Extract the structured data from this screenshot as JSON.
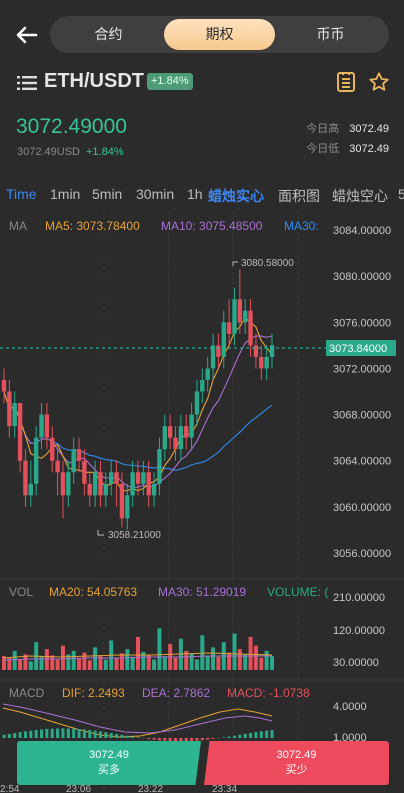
{
  "nav": {
    "tabs": [
      {
        "label": "合约"
      },
      {
        "label": "期权"
      },
      {
        "label": "币币"
      }
    ],
    "active_tab": "期权"
  },
  "pair": {
    "name": "ETH/USDT",
    "change_badge": "+1.84%"
  },
  "ticker": {
    "last_price": "3072.49000",
    "usd_price": "3072.49USD",
    "change": "+1.84%",
    "high_label": "今日高",
    "high_value": "3072.49",
    "low_label": "今日低",
    "low_value": "3072.49"
  },
  "intervals": [
    {
      "label": "Time",
      "active": true
    },
    {
      "label": "1min"
    },
    {
      "label": "5min"
    },
    {
      "label": "30min"
    },
    {
      "label": "1h"
    },
    {
      "label": "蜡烛实心",
      "active": true
    },
    {
      "label": "面积图"
    },
    {
      "label": "蜡烛空心"
    },
    {
      "label": "5"
    }
  ],
  "main_chart": {
    "ma_label": "MA",
    "ma5_label": "MA5: 3073.78400",
    "ma10_label": "MA10: 3075.48500",
    "ma30_label": "MA30:",
    "y_ticks": [
      "3084.00000",
      "3080.00000",
      "3076.00000",
      "3072.00000",
      "3068.00000",
      "3064.00000",
      "3060.00000",
      "3056.00000"
    ],
    "max_label": "3080.58000",
    "min_label": "3058.21000",
    "current_price_tag": "3073.84000",
    "colors": {
      "ma5": "#e8a232",
      "ma10": "#a970d6",
      "ma30": "#2f8cf0",
      "up": "#2aa98a",
      "down": "#e2515c"
    }
  },
  "volume": {
    "label": "VOL",
    "ma20_label": "MA20: 54.05763",
    "ma30_label": "MA30: 51.29019",
    "volume_label": "VOLUME: (",
    "y_ticks": [
      "210.00000",
      "120.00000",
      "30.00000"
    ]
  },
  "macd": {
    "label": "MACD",
    "dif_label": "DIF: 2.2493",
    "dea_label": "DEA: 2.7862",
    "macd_label": "MACD: -1.0738",
    "y_ticks": [
      "4.0000",
      "1.0000"
    ]
  },
  "x_ticks": [
    "2:54",
    "23:06",
    "23:22",
    "23:34"
  ],
  "buy": {
    "price": "3072.49",
    "label": "买多"
  },
  "sell": {
    "price": "3072.49",
    "label": "买少"
  },
  "chart_data": {
    "type": "candlestick",
    "y_range": [
      3054,
      3086
    ],
    "candles": [
      [
        3071,
        3070,
        3072,
        3069
      ],
      [
        3070,
        3067,
        3071,
        3066
      ],
      [
        3067,
        3069,
        3070,
        3066
      ],
      [
        3069,
        3064,
        3069,
        3063
      ],
      [
        3064,
        3061,
        3065,
        3060
      ],
      [
        3061,
        3062,
        3064,
        3060
      ],
      [
        3062,
        3066,
        3067,
        3061
      ],
      [
        3066,
        3068,
        3069,
        3065
      ],
      [
        3068,
        3066,
        3069,
        3065
      ],
      [
        3066,
        3064,
        3067,
        3063
      ],
      [
        3064,
        3063,
        3065,
        3061
      ],
      [
        3063,
        3061,
        3064,
        3059
      ],
      [
        3061,
        3063,
        3064,
        3060
      ],
      [
        3063,
        3065,
        3066,
        3062
      ],
      [
        3065,
        3064,
        3066,
        3063
      ],
      [
        3064,
        3062,
        3065,
        3061
      ],
      [
        3062,
        3061,
        3063,
        3060
      ],
      [
        3061,
        3063,
        3064,
        3060
      ],
      [
        3063,
        3061,
        3064,
        3060
      ],
      [
        3061,
        3062,
        3063,
        3060
      ],
      [
        3062,
        3063,
        3064,
        3061
      ],
      [
        3063,
        3062,
        3064,
        3060
      ],
      [
        3062,
        3059,
        3063,
        3058.2
      ],
      [
        3059,
        3061,
        3062,
        3058
      ],
      [
        3061,
        3063,
        3064,
        3060
      ],
      [
        3063,
        3062,
        3064,
        3061
      ],
      [
        3062,
        3063,
        3064,
        3061
      ],
      [
        3063,
        3061,
        3064,
        3060
      ],
      [
        3061,
        3062,
        3063,
        3060
      ],
      [
        3062,
        3065,
        3066,
        3061
      ],
      [
        3065,
        3067,
        3068,
        3064
      ],
      [
        3067,
        3066,
        3068,
        3065
      ],
      [
        3066,
        3065,
        3067,
        3064
      ],
      [
        3065,
        3067,
        3068,
        3064
      ],
      [
        3067,
        3066,
        3068,
        3065
      ],
      [
        3066,
        3068,
        3069,
        3065
      ],
      [
        3068,
        3070,
        3071,
        3067
      ],
      [
        3070,
        3071,
        3072,
        3069
      ],
      [
        3071,
        3072,
        3073,
        3070
      ],
      [
        3072,
        3074,
        3075,
        3071
      ],
      [
        3074,
        3073,
        3075,
        3072
      ],
      [
        3073,
        3076,
        3077,
        3072
      ],
      [
        3076,
        3075,
        3078,
        3074
      ],
      [
        3075,
        3078,
        3079,
        3074
      ],
      [
        3078,
        3076,
        3080.58,
        3075
      ],
      [
        3076,
        3077,
        3078,
        3075
      ],
      [
        3077,
        3074,
        3078,
        3073
      ],
      [
        3074,
        3073,
        3075,
        3072
      ],
      [
        3073,
        3072,
        3074,
        3071
      ],
      [
        3072,
        3073,
        3074,
        3071
      ],
      [
        3073,
        3074,
        3075,
        3072
      ]
    ],
    "volumes": [
      40,
      35,
      55,
      30,
      45,
      25,
      80,
      38,
      60,
      42,
      30,
      70,
      45,
      55,
      35,
      50,
      28,
      65,
      40,
      30,
      85,
      35,
      48,
      60,
      38,
      95,
      52,
      44,
      30,
      120,
      40,
      75,
      35,
      90,
      55,
      48,
      30,
      100,
      42,
      65,
      38,
      80,
      50,
      105,
      60,
      45,
      95,
      70,
      35,
      55,
      40
    ]
  }
}
